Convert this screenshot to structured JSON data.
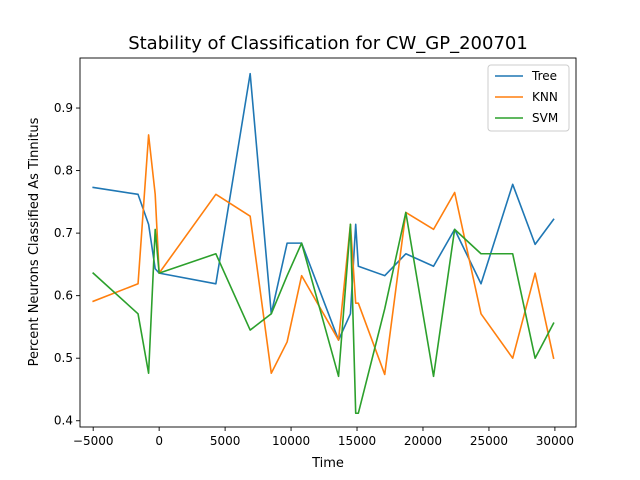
{
  "chart_data": {
    "type": "line",
    "title": "Stability of Classification for CW_GP_200701",
    "xlabel": "Time",
    "ylabel": "Percent Neurons Classified As Tinnitus",
    "xlim": [
      -6000,
      31600
    ],
    "ylim": [
      0.39,
      0.98
    ],
    "xticks": [
      -5000,
      0,
      5000,
      10000,
      15000,
      20000,
      25000,
      30000
    ],
    "xtick_labels": [
      "−5000",
      "0",
      "5000",
      "10000",
      "15000",
      "20000",
      "25000",
      "30000"
    ],
    "yticks": [
      0.4,
      0.5,
      0.6,
      0.7,
      0.8,
      0.9
    ],
    "ytick_labels": [
      "0.4",
      "0.5",
      "0.6",
      "0.7",
      "0.8",
      "0.9"
    ],
    "grid": false,
    "legend_position": "top-right",
    "x": [
      -5000,
      -1600,
      -800,
      -300,
      0,
      4300,
      6900,
      8500,
      9700,
      10800,
      13600,
      14500,
      14900,
      15100,
      17100,
      18700,
      20800,
      22400,
      24400,
      26800,
      28500,
      29900
    ],
    "series": [
      {
        "name": "Tree",
        "color": "#1f77b4",
        "values": [
          0.773,
          0.762,
          0.714,
          0.643,
          0.636,
          0.619,
          0.955,
          0.571,
          0.684,
          0.684,
          0.529,
          0.571,
          0.714,
          0.647,
          0.632,
          0.667,
          0.647,
          0.706,
          0.619,
          0.778,
          0.682,
          0.722
        ]
      },
      {
        "name": "KNN",
        "color": "#ff7f0e",
        "values": [
          0.591,
          0.619,
          0.857,
          0.762,
          0.636,
          0.762,
          0.727,
          0.476,
          0.526,
          0.632,
          0.529,
          0.714,
          0.588,
          0.588,
          0.474,
          0.733,
          0.706,
          0.765,
          0.571,
          0.5,
          0.636,
          0.5
        ]
      },
      {
        "name": "SVM",
        "color": "#2ca02c",
        "values": [
          0.636,
          0.571,
          0.476,
          0.706,
          0.636,
          0.667,
          0.545,
          0.571,
          0.632,
          0.684,
          0.471,
          0.714,
          0.412,
          0.412,
          0.579,
          0.733,
          0.471,
          0.706,
          0.667,
          0.667,
          0.5,
          0.556
        ]
      }
    ]
  }
}
